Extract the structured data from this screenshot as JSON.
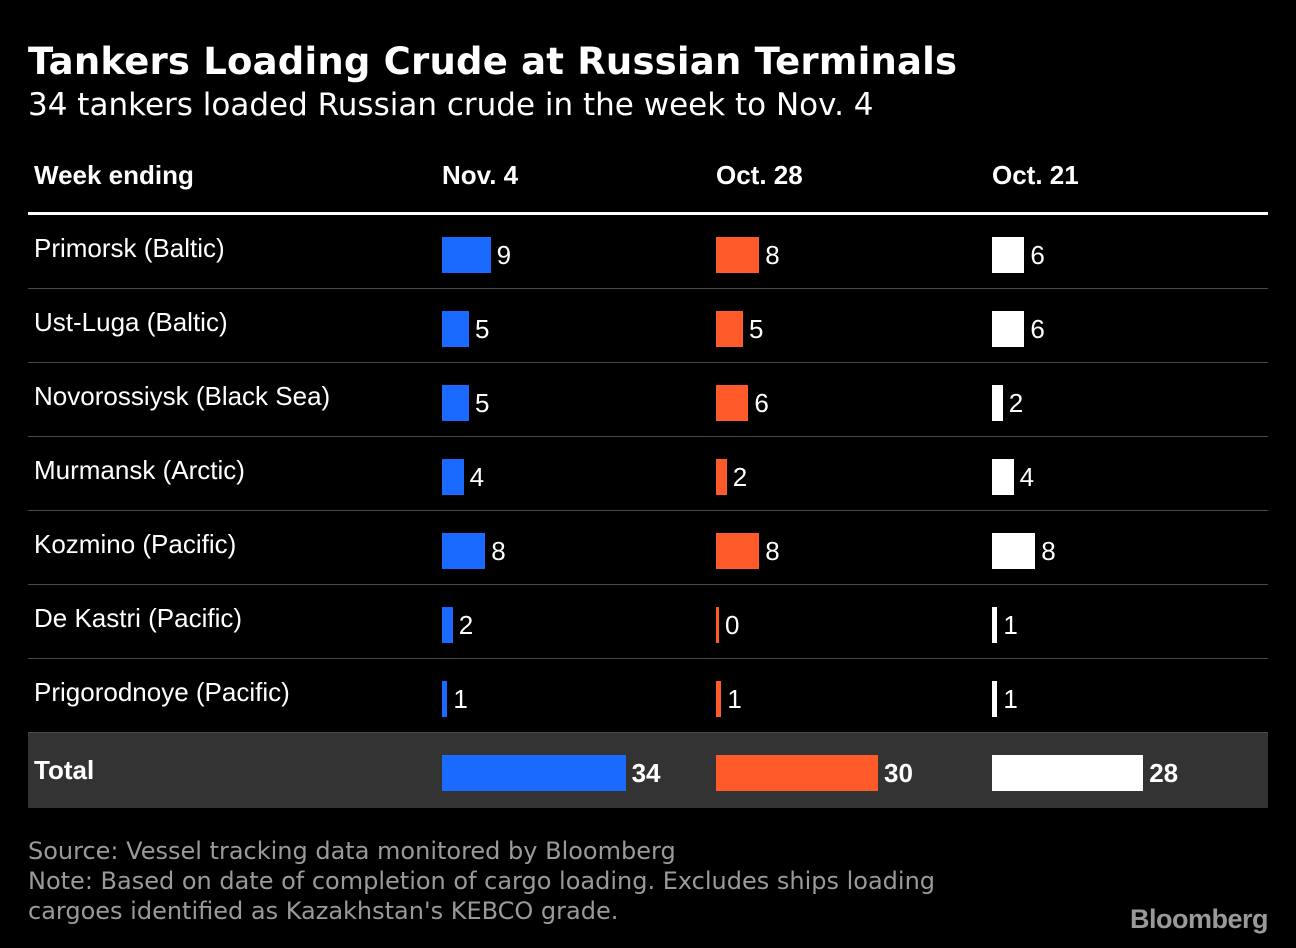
{
  "title": "Tankers Loading Crude at Russian Terminals",
  "subtitle": "34 tankers loaded Russian crude in the week to Nov. 4",
  "header": {
    "row_label": "Week ending",
    "columns": [
      "Nov. 4",
      "Oct. 28",
      "Oct. 21"
    ]
  },
  "colors": {
    "background": "#000000",
    "series": [
      "#1a6aff",
      "#ff5a2a",
      "#ffffff"
    ],
    "total_row": "#333333",
    "muted_text": "#9a9a9a"
  },
  "chart_data": {
    "type": "table",
    "categories": [
      "Primorsk (Baltic)",
      "Ust-Luga (Baltic)",
      "Novorossiysk (Black Sea)",
      "Murmansk (Arctic)",
      "Kozmino (Pacific)",
      "De Kastri (Pacific)",
      "Prigorodnoye (Pacific)"
    ],
    "series": [
      {
        "name": "Nov. 4",
        "values": [
          9,
          5,
          5,
          4,
          8,
          2,
          1
        ],
        "total": 34
      },
      {
        "name": "Oct. 28",
        "values": [
          8,
          5,
          6,
          2,
          8,
          0,
          1
        ],
        "total": 30
      },
      {
        "name": "Oct. 21",
        "values": [
          6,
          6,
          2,
          4,
          8,
          1,
          1
        ],
        "total": 28
      }
    ],
    "total_label": "Total"
  },
  "footer": {
    "source": "Source: Vessel tracking data monitored by Bloomberg",
    "note_line1": "Note: Based on date of completion of cargo loading. Excludes ships loading",
    "note_line2": "cargoes identified as Kazakhstan's KEBCO grade."
  },
  "brand": "Bloomberg"
}
